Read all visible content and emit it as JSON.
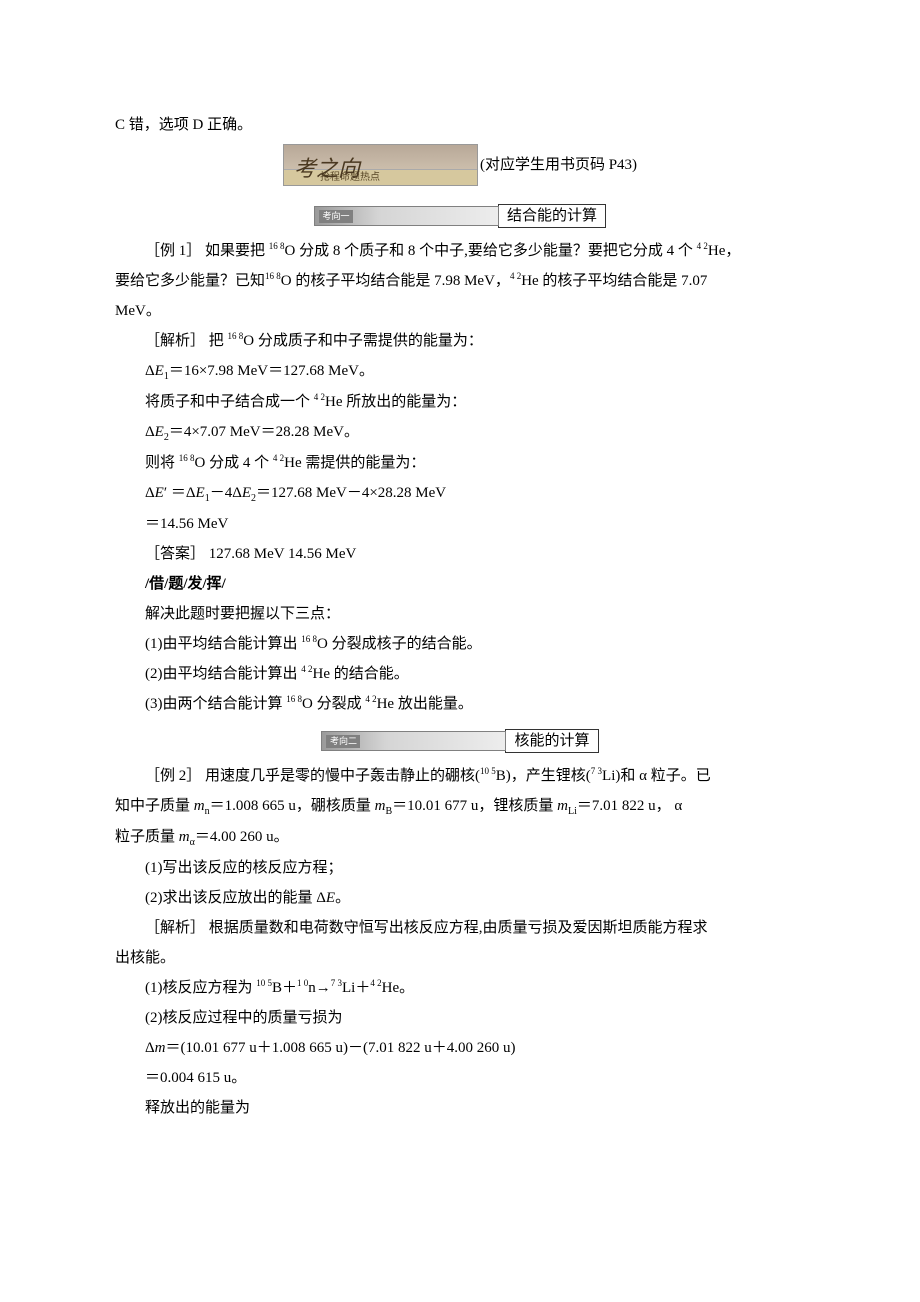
{
  "top_line": "C 错，选项 D 正确。",
  "banner": {
    "calligraphy": "考之向",
    "subtitle": "抢程命题热点",
    "label": "(对应学生用书页码 P43)"
  },
  "topic1": {
    "tag": "考向一",
    "title": "结合能的计算"
  },
  "ex1": {
    "label": "［例 1］",
    "q1a": "  如果要把 ",
    "iso_16_8": "16 8",
    "o": "O",
    "q1b": " 分成 8 个质子和 8 个中子,要给它多少能量？要把它分成 4 个 ",
    "iso_4_2": "4 2",
    "he": "He",
    "q1c": "，",
    "q2a": "要给它多少能量？已知",
    "q2b": "O   的核子平均结合能是 7.98 MeV，",
    "q2c": "He 的核子平均结合能是 7.07",
    "q3": "MeV。",
    "sol_label": "［解析］  把 ",
    "sol1": "O 分成质子和中子需提供的能量为：",
    "eq1": "ΔE₁＝16×7.98 MeV＝127.68 MeV。",
    "sol2a": "将质子和中子结合成一个 ",
    "sol2b": "He 所放出的能量为：",
    "eq2": "ΔE₂＝4×7.07 MeV＝28.28 MeV。",
    "sol3a": "则将 ",
    "sol3b": "O 分成 4 个 ",
    "sol3c": "He 需提供的能量为：",
    "eq3a": "ΔE′ ＝ΔE₁－4ΔE₂＝127.68 MeV－4×28.28 MeV",
    "eq3b": "＝14.56 MeV",
    "ans": "［答案］  127.68 MeV  14.56 MeV"
  },
  "hint": {
    "header": "/借/题/发/挥/",
    "intro": "解决此题时要把握以下三点：",
    "p1a": "(1)由平均结合能计算出 ",
    "p1b": "O 分裂成核子的结合能。",
    "p2a": "(2)由平均结合能计算出 ",
    "p2b": "He 的结合能。",
    "p3a": "(3)由两个结合能计算 ",
    "p3b": "O 分裂成 ",
    "p3c": "He 放出能量。"
  },
  "topic2": {
    "tag": "考向二",
    "title": "核能的计算"
  },
  "ex2": {
    "label": "［例 2］",
    "q1a": "  用速度几乎是零的慢中子轰击静止的硼核(",
    "iso_10_5": "10 5",
    "b": "B",
    "q1b": ")，产生锂核(",
    "iso_7_3": "7 3",
    "li": "Li",
    "q1c": ")和 α 粒子。已",
    "q2a": "知中子质量 ",
    "mn": "m",
    "mn_sub": "n",
    "q2b": "＝1.008 665 u，硼核质量 ",
    "mb_sub": "B",
    "q2c": "＝10.01 677 u，锂核质量 ",
    "mli_sub": "Li",
    "q2d": "＝7.01 822 u， α",
    "q3a": "粒子质量 ",
    "ma_sub": "α",
    "q3b": "＝4.00 260 u。",
    "p1": "(1)写出该反应的核反应方程；",
    "p2": "(2)求出该反应放出的能量 ΔE。",
    "sol_label": "［解析］  根据质量数和电荷数守恒写出核反应方程,由质量亏损及爱因斯坦质能方程求",
    "sol_label2": "出核能。",
    "r1a": "(1)核反应方程为 ",
    "r1b": "B＋",
    "iso_1_0": "1 0",
    "n": "n",
    "r1c": "→",
    "r1d": "Li＋",
    "r1e": "He。",
    "r2": "(2)核反应过程中的质量亏损为",
    "eq1": "Δm＝(10.01 677 u＋1.008 665 u)－(7.01 822 u＋4.00 260 u)",
    "eq2": "＝0.004 615 u。",
    "last": "释放出的能量为"
  },
  "colors": {
    "text": "#000000",
    "bg": "#ffffff",
    "banner_grad_top": "#b8a898",
    "banner_grad_bot": "#d8ccba",
    "tag_grad_left": "#9a9a9a",
    "tag_grad_right": "#ededed"
  }
}
